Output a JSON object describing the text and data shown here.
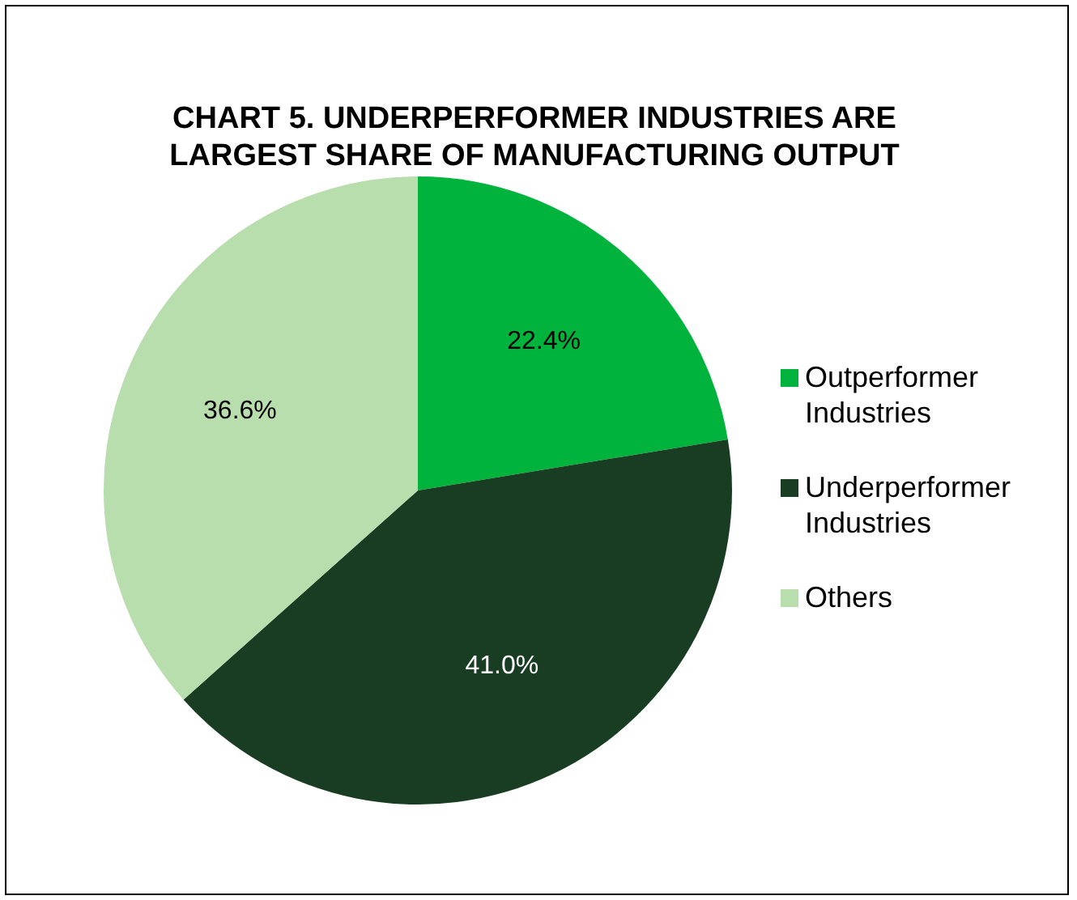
{
  "chart_data": {
    "type": "pie",
    "title": "CHART 5. UNDERPERFORMER INDUSTRIES ARE LARGEST SHARE OF MANUFACTURING OUTPUT",
    "categories": [
      "Outperformer Industries",
      "Underperformer Industries",
      "Others"
    ],
    "values": [
      22.4,
      41.0,
      36.6
    ],
    "colors": [
      "#00b33c",
      "#193d22",
      "#b8deae"
    ],
    "value_labels": [
      "22.4%",
      "41.0%",
      "36.6%"
    ],
    "legend": "right"
  }
}
